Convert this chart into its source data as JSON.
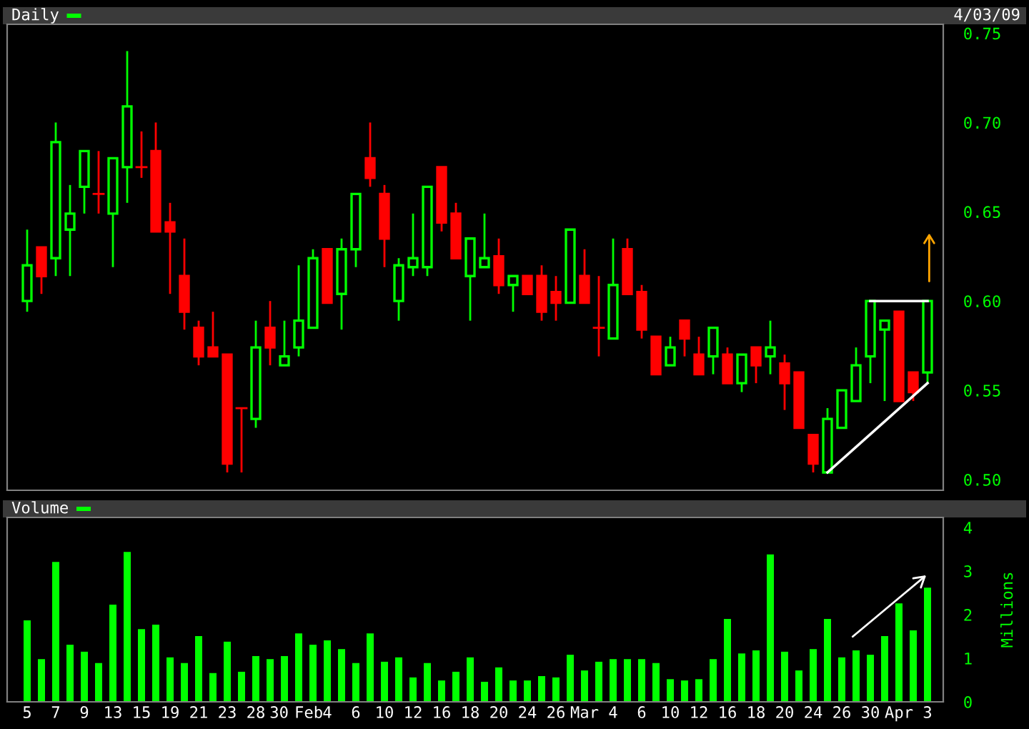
{
  "chart_data": [
    {
      "type": "candlestick",
      "title": "Daily",
      "annotations": [
        "4/03/09"
      ],
      "tick_labels": "y",
      "grid": false,
      "categories": [
        null,
        null,
        null,
        null,
        null,
        null,
        null,
        null,
        null,
        null,
        null,
        null,
        null,
        null,
        null,
        null,
        null,
        null,
        null,
        null,
        null,
        null,
        null,
        null,
        null,
        null,
        null,
        null,
        null,
        null,
        null,
        null,
        null,
        null,
        null,
        null,
        null,
        null,
        null,
        null,
        null,
        null,
        null,
        null,
        null,
        null,
        null,
        null,
        null,
        null,
        null,
        null,
        null,
        null,
        null,
        null,
        null,
        null,
        null,
        null,
        null,
        null,
        null,
        null
      ],
      "ohlc": [
        [
          0.6,
          0.64,
          0.594,
          0.62
        ],
        [
          0.63,
          0.63,
          0.604,
          0.614
        ],
        [
          0.624,
          0.7,
          0.614,
          0.689
        ],
        [
          0.64,
          0.665,
          0.614,
          0.649
        ],
        [
          0.664,
          0.684,
          0.649,
          0.684
        ],
        [
          0.66,
          0.684,
          0.649,
          0.66
        ],
        [
          0.649,
          0.68,
          0.619,
          0.68
        ],
        [
          0.675,
          0.74,
          0.655,
          0.709
        ],
        [
          0.675,
          0.695,
          0.669,
          0.675
        ],
        [
          0.684,
          0.7,
          0.639,
          0.639
        ],
        [
          0.644,
          0.655,
          0.604,
          0.639
        ],
        [
          0.614,
          0.635,
          0.584,
          0.594
        ],
        [
          0.585,
          0.589,
          0.564,
          0.569
        ],
        [
          0.574,
          0.594,
          0.569,
          0.569
        ],
        [
          0.57,
          0.57,
          0.504,
          0.509
        ],
        [
          0.54,
          0.54,
          0.504,
          0.54
        ],
        [
          0.534,
          0.589,
          0.529,
          0.574
        ],
        [
          0.585,
          0.6,
          0.564,
          0.574
        ],
        [
          0.564,
          0.589,
          0.564,
          0.569
        ],
        [
          0.574,
          0.62,
          0.569,
          0.589
        ],
        [
          0.585,
          0.629,
          0.585,
          0.624
        ],
        [
          0.629,
          0.629,
          0.599,
          0.599
        ],
        [
          0.604,
          0.635,
          0.584,
          0.629
        ],
        [
          0.629,
          0.66,
          0.619,
          0.66
        ],
        [
          0.68,
          0.7,
          0.664,
          0.669
        ],
        [
          0.66,
          0.665,
          0.619,
          0.635
        ],
        [
          0.6,
          0.624,
          0.589,
          0.62
        ],
        [
          0.619,
          0.649,
          0.614,
          0.624
        ],
        [
          0.619,
          0.664,
          0.614,
          0.664
        ],
        [
          0.675,
          0.675,
          0.639,
          0.644
        ],
        [
          0.649,
          0.655,
          0.624,
          0.624
        ],
        [
          0.614,
          0.635,
          0.589,
          0.635
        ],
        [
          0.619,
          0.649,
          0.619,
          0.624
        ],
        [
          0.625,
          0.635,
          0.604,
          0.609
        ],
        [
          0.609,
          0.614,
          0.594,
          0.614
        ],
        [
          0.614,
          0.614,
          0.604,
          0.604
        ],
        [
          0.614,
          0.62,
          0.589,
          0.594
        ],
        [
          0.605,
          0.614,
          0.589,
          0.599
        ],
        [
          0.599,
          0.64,
          0.599,
          0.64
        ],
        [
          0.614,
          0.629,
          0.599,
          0.599
        ],
        [
          0.585,
          0.614,
          0.569,
          0.585
        ],
        [
          0.579,
          0.635,
          0.579,
          0.609
        ],
        [
          0.629,
          0.635,
          0.604,
          0.604
        ],
        [
          0.605,
          0.609,
          0.579,
          0.584
        ],
        [
          0.58,
          0.58,
          0.559,
          0.559
        ],
        [
          0.564,
          0.58,
          0.564,
          0.574
        ],
        [
          0.589,
          0.589,
          0.569,
          0.579
        ],
        [
          0.57,
          0.58,
          0.559,
          0.559
        ],
        [
          0.569,
          0.585,
          0.559,
          0.585
        ],
        [
          0.57,
          0.574,
          0.554,
          0.554
        ],
        [
          0.554,
          0.57,
          0.549,
          0.57
        ],
        [
          0.574,
          0.574,
          0.554,
          0.564
        ],
        [
          0.569,
          0.589,
          0.559,
          0.574
        ],
        [
          0.565,
          0.57,
          0.539,
          0.554
        ],
        [
          0.56,
          0.56,
          0.529,
          0.529
        ],
        [
          0.525,
          0.525,
          0.504,
          0.509
        ],
        [
          0.504,
          0.54,
          0.504,
          0.534
        ],
        [
          0.529,
          0.55,
          0.529,
          0.55
        ],
        [
          0.544,
          0.574,
          0.544,
          0.564
        ],
        [
          0.569,
          0.6,
          0.554,
          0.6
        ],
        [
          0.584,
          0.589,
          0.544,
          0.589
        ],
        [
          0.594,
          0.594,
          0.544,
          0.544
        ],
        [
          0.56,
          0.56,
          0.544,
          0.549
        ],
        [
          0.56,
          0.6,
          0.554,
          0.6
        ]
      ],
      "colors": [
        "#00ff00",
        "#ff0000",
        "#00ff00",
        "#00ff00",
        "#00ff00",
        "#ff0000",
        "#00ff00",
        "#00ff00",
        "#ff0000",
        "#ff0000",
        "#ff0000",
        "#ff0000",
        "#ff0000",
        "#ff0000",
        "#ff0000",
        "#ff0000",
        "#00ff00",
        "#ff0000",
        "#00ff00",
        "#00ff00",
        "#00ff00",
        "#ff0000",
        "#00ff00",
        "#00ff00",
        "#ff0000",
        "#ff0000",
        "#00ff00",
        "#00ff00",
        "#00ff00",
        "#ff0000",
        "#ff0000",
        "#00ff00",
        "#00ff00",
        "#ff0000",
        "#00ff00",
        "#ff0000",
        "#ff0000",
        "#ff0000",
        "#00ff00",
        "#ff0000",
        "#ff0000",
        "#00ff00",
        "#ff0000",
        "#ff0000",
        "#ff0000",
        "#00ff00",
        "#ff0000",
        "#ff0000",
        "#00ff00",
        "#ff0000",
        "#00ff00",
        "#ff0000",
        "#00ff00",
        "#ff0000",
        "#ff0000",
        "#ff0000",
        "#00ff00",
        "#00ff00",
        "#00ff00",
        "#00ff00",
        "#00ff00",
        "#ff0000",
        "#ff0000",
        "#00ff00"
      ],
      "series": [
        {
          "type": "line",
          "color": "#ffffff",
          "values": [
            null,
            null,
            null,
            null,
            null,
            null,
            null,
            null,
            null,
            null,
            null,
            null,
            null,
            null,
            null,
            null,
            null,
            null,
            null,
            null,
            null,
            null,
            null,
            null,
            null,
            null,
            null,
            null,
            null,
            null,
            null,
            null,
            null,
            null,
            null,
            null,
            null,
            null,
            null,
            null,
            null,
            null,
            null,
            null,
            null,
            null,
            null,
            null,
            null,
            null,
            null,
            null,
            null,
            null,
            null,
            null,
            0.504,
            null,
            null,
            null,
            null,
            null,
            null,
            0.554
          ]
        },
        {
          "type": "line",
          "color": "#ffffff",
          "values": [
            null,
            null,
            null,
            null,
            null,
            null,
            null,
            null,
            null,
            null,
            null,
            null,
            null,
            null,
            null,
            null,
            null,
            null,
            null,
            null,
            null,
            null,
            null,
            null,
            null,
            null,
            null,
            null,
            null,
            null,
            null,
            null,
            null,
            null,
            null,
            null,
            null,
            null,
            null,
            null,
            null,
            null,
            null,
            null,
            null,
            null,
            null,
            null,
            null,
            null,
            null,
            null,
            null,
            null,
            null,
            null,
            null,
            null,
            null,
            0.6,
            null,
            null,
            null,
            0.6
          ]
        }
      ],
      "ylim": [
        0.494,
        0.755
      ],
      "yticks": [
        {
          "value": 0.5,
          "label": "0.50"
        },
        0.55,
        {
          "value": 0.6,
          "label": "0.60"
        },
        0.65,
        {
          "value": 0.7,
          "label": "0.70"
        },
        0.75
      ]
    },
    {
      "type": "bar",
      "title": "Volume",
      "ylabel": "Millions",
      "grid": false,
      "color": "#00ff00",
      "categories": [
        "5",
        null,
        "7",
        null,
        "9",
        null,
        "13",
        null,
        "15",
        null,
        "19",
        null,
        "21",
        null,
        "23",
        null,
        "28",
        null,
        "30",
        "Feb",
        null,
        "4",
        null,
        "6",
        null,
        "10",
        null,
        "12",
        null,
        "16",
        null,
        "18",
        null,
        "20",
        null,
        "24",
        null,
        "26",
        null,
        "Mar",
        null,
        "4",
        null,
        "6",
        null,
        "10",
        null,
        "12",
        null,
        "16",
        null,
        "18",
        null,
        "20",
        null,
        "24",
        null,
        "26",
        null,
        "30",
        null,
        "Apr",
        null,
        "3"
      ],
      "values": [
        1.87,
        0.98,
        3.21,
        1.31,
        1.15,
        0.89,
        2.23,
        3.44,
        1.67,
        1.77,
        1.02,
        0.89,
        1.51,
        0.66,
        1.38,
        0.69,
        1.05,
        0.98,
        1.05,
        1.57,
        1.31,
        1.41,
        1.21,
        0.89,
        1.57,
        0.92,
        1.02,
        0.56,
        0.89,
        0.49,
        0.69,
        1.02,
        0.46,
        0.79,
        0.49,
        0.49,
        0.59,
        0.56,
        1.08,
        0.72,
        0.92,
        0.98,
        0.98,
        0.98,
        0.89,
        0.52,
        0.49,
        0.52,
        0.98,
        1.9,
        1.11,
        1.18,
        3.38,
        1.15,
        0.72,
        1.21,
        1.9,
        1.02,
        1.18,
        1.08,
        1.51,
        2.26,
        1.64,
        2.62
      ],
      "ylim": [
        0,
        4.23
      ],
      "yticks": [
        0,
        1,
        2,
        3,
        4
      ]
    }
  ]
}
